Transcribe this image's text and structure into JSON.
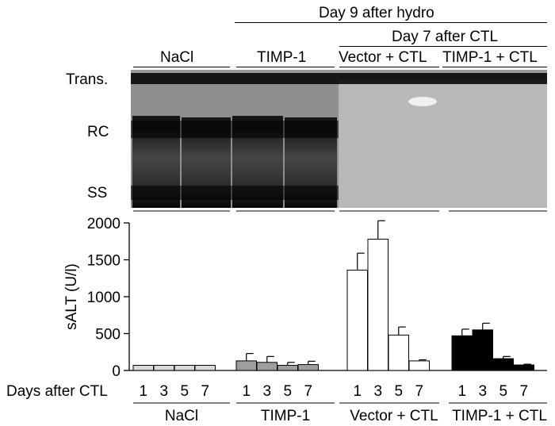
{
  "header": {
    "day9_label": "Day 9 after hydro",
    "day7_label": "Day 7 after CTL",
    "groups": [
      "NaCl",
      "TIMP-1",
      "Vector + CTL",
      "TIMP-1 + CTL"
    ]
  },
  "blot": {
    "row_labels": [
      "Trans.",
      "RC",
      "SS"
    ]
  },
  "chart_data": {
    "type": "bar",
    "ylabel": "sALT (U/l)",
    "xlabel": "Days after CTL",
    "ylim": [
      0,
      2000
    ],
    "yticks": [
      0,
      500,
      1000,
      1500,
      2000
    ],
    "days": [
      "1",
      "3",
      "5",
      "7"
    ],
    "groups": [
      {
        "name": "NaCl",
        "color": "#d9d9d9",
        "values": [
          70,
          70,
          70,
          70
        ],
        "errors": [
          0,
          0,
          0,
          0
        ]
      },
      {
        "name": "TIMP-1",
        "color": "#9e9e9e",
        "values": [
          130,
          110,
          70,
          80
        ],
        "errors": [
          100,
          80,
          40,
          45
        ]
      },
      {
        "name": "Vector + CTL",
        "color": "#ffffff",
        "values": [
          1360,
          1780,
          480,
          130
        ],
        "errors": [
          230,
          250,
          110,
          15
        ]
      },
      {
        "name": "TIMP-1 + CTL",
        "color": "#000000",
        "values": [
          470,
          550,
          160,
          75
        ],
        "errors": [
          90,
          90,
          30,
          10
        ]
      }
    ]
  }
}
